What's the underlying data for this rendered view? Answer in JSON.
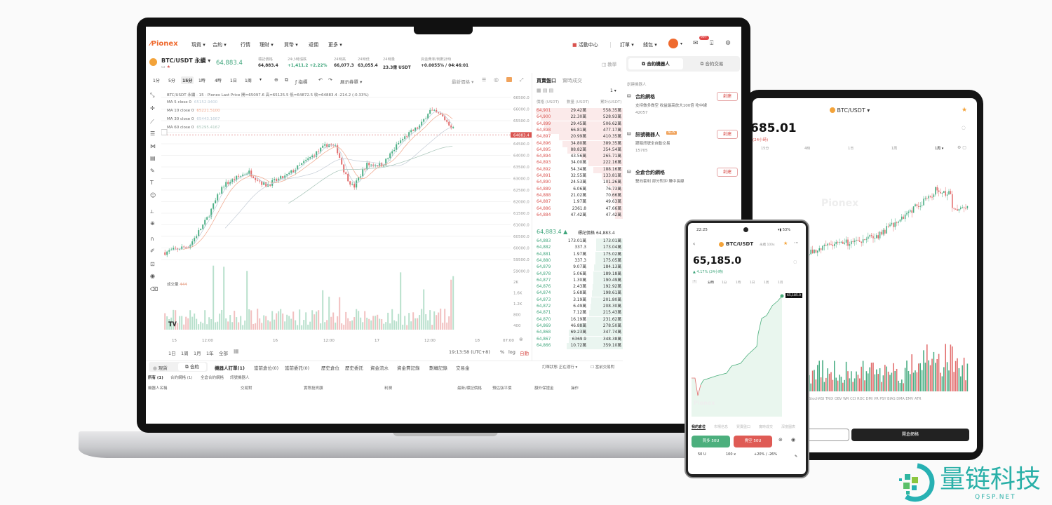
{
  "nav": {
    "logo": "Pionex",
    "items": [
      "現貨 ▾",
      "合約 ▾",
      "行情",
      "理財 ▾",
      "買幣 ▾",
      "返佣",
      "更多 ▾"
    ],
    "activity": "活動中心",
    "orders": "訂單 ▾",
    "wallet": "錢包 ▾",
    "mail_badge": "99+"
  },
  "ticker": {
    "symbol": "BTC/USDT 永續 ▾",
    "price": "64,883.4",
    "stats": [
      {
        "label": "標記價格",
        "value": "64,883.4",
        "color": "#333"
      },
      {
        "label": "24小時漲跌",
        "value": "+1,411.2 +2.22%",
        "color": "#3ea57b"
      },
      {
        "label": "24時高",
        "value": "66,077.3",
        "color": "#333"
      },
      {
        "label": "24時低",
        "value": "63,055.4",
        "color": "#333"
      },
      {
        "label": "24時量",
        "value": "23.3億 USDT",
        "color": "#333"
      },
      {
        "label": "資金費率/倒數計時",
        "value": "+0.0055% / 04:46:01",
        "color": "#333"
      }
    ],
    "tutorial": "教學"
  },
  "chart_toolbar": {
    "intervals": [
      "1分",
      "5分",
      "15分",
      "1時",
      "4時",
      "1日",
      "1周",
      "▾"
    ],
    "active_interval": "15分",
    "indicators": "指標",
    "show_orders": "展示券單 ▾",
    "price_type": "最新價格 ▾"
  },
  "chart": {
    "legend": "BTC/USDT 永續 · 15 · Pionex Last Price  開=65097.6 高=65125.5 低=64872.5 收=64883.4 -214.2 (-0.33%)",
    "ma": [
      {
        "label": "MA 5 close 0",
        "value": "65152.9400",
        "color": "#b9c9d6"
      },
      {
        "label": "MA 10 close 0",
        "value": "65221.5100",
        "color": "#f0a58a"
      },
      {
        "label": "MA 30 close 0",
        "value": "65443.1667",
        "color": "#b9c9d6"
      },
      {
        "label": "MA 60 close 0",
        "value": "65295.4167",
        "color": "#a7c4b8"
      }
    ],
    "price_ticks": [
      "66500.0",
      "66000.0",
      "65500.0",
      "64500.0",
      "64000.0",
      "63500.0",
      "63000.0",
      "62500.0",
      "62000.0",
      "61500.0",
      "61000.0",
      "60500.0",
      "60000.0",
      "59500.0",
      "59000.0"
    ],
    "current_price_label": "64883.4",
    "volume_label": "成交量",
    "volume_value": "444",
    "volume_ticks": [
      "2K",
      "1.6K",
      "1.2K",
      "800",
      "400"
    ],
    "time_ticks": [
      "15",
      "12:00",
      "16",
      "12:00",
      "17",
      "12:00",
      "18",
      "07:00"
    ],
    "trend": [
      [
        "07-14 22:00",
        59800
      ],
      [
        "07-15 04:00",
        60100
      ],
      [
        "07-15 08:00",
        61200
      ],
      [
        "07-15 12:00",
        62700
      ],
      [
        "07-15 18:00",
        63300
      ],
      [
        "07-15 22:00",
        62700
      ],
      [
        "07-16 03:00",
        63100
      ],
      [
        "07-16 08:00",
        63800
      ],
      [
        "07-16 13:00",
        64500
      ],
      [
        "07-16 15:00",
        64300
      ],
      [
        "07-16 17:00",
        63200
      ],
      [
        "07-16 19:00",
        62600
      ],
      [
        "07-16 22:00",
        63600
      ],
      [
        "07-17 02:00",
        63600
      ],
      [
        "07-17 06:00",
        64600
      ],
      [
        "07-17 08:00",
        64900
      ],
      [
        "07-17 11:00",
        65300
      ],
      [
        "07-17 13:00",
        65950
      ],
      [
        "07-17 16:00",
        65700
      ],
      [
        "07-17 18:00",
        65300
      ],
      [
        "07-17 20:00",
        64883
      ]
    ],
    "ranges": [
      "1日",
      "1周",
      "1月",
      "1年",
      "全部"
    ],
    "clock": "19:13:58 (UTC+8)",
    "pct": "%",
    "log": "log",
    "auto": "自動",
    "colors": {
      "up": "#4caf85",
      "down": "#e26d6d"
    }
  },
  "orderbook": {
    "tabs": [
      "買賣盤口",
      "實時成交"
    ],
    "precision": "1 ▾",
    "headers": [
      "價格 (USDT)",
      "數量 (USDT)",
      "累計(USDT)"
    ],
    "asks": [
      [
        "64,901",
        "29.42萬",
        "558.35萬"
      ],
      [
        "64,900",
        "22.30萬",
        "528.93萬"
      ],
      [
        "64,899",
        "29.45萬",
        "506.62萬"
      ],
      [
        "64,898",
        "66.81萬",
        "477.17萬"
      ],
      [
        "64,897",
        "20.99萬",
        "410.35萬"
      ],
      [
        "64,896",
        "34.80萬",
        "389.35萬"
      ],
      [
        "64,895",
        "88.82萬",
        "354.54萬"
      ],
      [
        "64,894",
        "43.56萬",
        "265.71萬"
      ],
      [
        "64,893",
        "34.00萬",
        "222.16萬"
      ],
      [
        "64,892",
        "54.34萬",
        "188.16萬"
      ],
      [
        "64,891",
        "32.55萬",
        "133.81萬"
      ],
      [
        "64,890",
        "24.53萬",
        "101.26萬"
      ],
      [
        "64,889",
        "6.06萬",
        "76.73萬"
      ],
      [
        "64,888",
        "21.02萬",
        "70.66萬"
      ],
      [
        "64,887",
        "1.97萬",
        "49.63萬"
      ],
      [
        "64,886",
        "2361.8",
        "47.66萬"
      ],
      [
        "64,884",
        "47.42萬",
        "47.42萬"
      ]
    ],
    "mid_price": "64,883.4 ▲",
    "mark_label": "標記價格",
    "mark_price": "64,883.4",
    "bids": [
      [
        "64,883",
        "173.01萬",
        "173.01萬"
      ],
      [
        "64,882",
        "337.3",
        "173.04萬"
      ],
      [
        "64,881",
        "1.97萬",
        "175.02萬"
      ],
      [
        "64,880",
        "337.3",
        "175.05萬"
      ],
      [
        "64,879",
        "9.07萬",
        "184.13萬"
      ],
      [
        "64,878",
        "5.06萬",
        "189.18萬"
      ],
      [
        "64,877",
        "1.30萬",
        "190.49萬"
      ],
      [
        "64,876",
        "2.43萬",
        "192.92萬"
      ],
      [
        "64,874",
        "5.68萬",
        "198.61萬"
      ],
      [
        "64,873",
        "3.19萬",
        "201.80萬"
      ],
      [
        "64,872",
        "6.49萬",
        "208.30萬"
      ],
      [
        "64,871",
        "7.12萬",
        "215.43萬"
      ],
      [
        "64,870",
        "16.19萬",
        "231.62萬"
      ],
      [
        "64,869",
        "46.88萬",
        "278.50萬"
      ],
      [
        "64,868",
        "69.23萬",
        "347.74萬"
      ],
      [
        "64,867",
        "6369.9",
        "348.38萬"
      ],
      [
        "64,866",
        "10.72萬",
        "359.10萬"
      ]
    ]
  },
  "bots": {
    "tabs": [
      "合約機器人",
      "合約交易"
    ],
    "section": "創建機器人",
    "create": "創建",
    "items": [
      {
        "name": "合約網格",
        "desc": "支持做多做空 收益最高放大100倍 吃中線",
        "users": "42057",
        "badge": ""
      },
      {
        "name": "訊號機器人",
        "desc": "跟隨訊號全自動交易",
        "users": "15705",
        "badge": "NEW"
      },
      {
        "name": "全倉合約網格",
        "desc": "雙向套利 部分對沖 賺中長線",
        "users": "",
        "badge": ""
      }
    ]
  },
  "bottom": {
    "toggle": [
      "現貨",
      "合約"
    ],
    "tabs": [
      "機器人訂單(1)",
      "當前倉位(0)",
      "當前委託(0)",
      "歷史倉位",
      "歷史委託",
      "資金流水",
      "資金費記錄",
      "劃轉記錄",
      "交易金"
    ],
    "status": "訂單狀態 正在運行 ▾",
    "current_pair": "當前交易對",
    "subtabs": [
      "所有 (1)",
      "合約網格 (1)",
      "全倉合約網格",
      "訊號機器人"
    ],
    "columns": [
      "機器人名稱",
      "交易對",
      "實際投資額",
      "利潤",
      "最新/標記價格",
      "預估強平價",
      "額外保證金",
      "操作"
    ]
  },
  "tablet": {
    "symbol": "BTC/USDT ▾",
    "price": "685.01",
    "change": "(24小時)",
    "tabs": [
      "15分",
      "4時",
      "1日",
      "1周",
      "1周 ▾"
    ],
    "watermark": "Pionex",
    "indicators": "StochRSI  TRIX  OBV  WR  CCI  ROC  DMI  VR  PSY  BIAS  DMA  EMV  ATR",
    "open_button": "開倉網格"
  },
  "phone": {
    "time": "22:25",
    "battery": "53%",
    "symbol": "BTC/USDT",
    "tag1": "永續",
    "tag2": "100x",
    "price": "65,185.0",
    "change": "▲ 4.17% (24小時)",
    "tabs": [
      "分時",
      "1分",
      "1時",
      "1日",
      "1周",
      "1月"
    ],
    "price_tag": "65,185.0",
    "watermark": "Pionex",
    "bottom_tabs": [
      "我的倉位",
      "市場信息",
      "買賣盤口",
      "實時成交",
      "深度圖表"
    ],
    "long": "買多 50U",
    "short": "賣空 50U",
    "params": [
      "50 U",
      "100 x",
      "+20% / -26%"
    ]
  },
  "watermark": {
    "text": "量链科技",
    "sub": "QFSP.NET"
  }
}
